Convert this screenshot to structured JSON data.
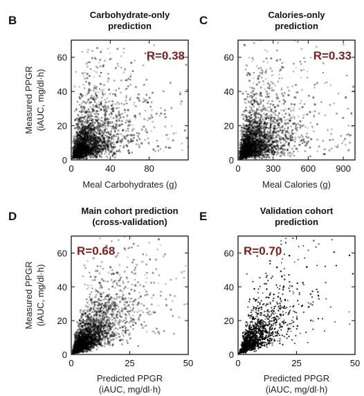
{
  "chart_data": [
    {
      "type": "scatter",
      "panel": "B",
      "title_lines": [
        "Carbohydrate-only",
        "prediction"
      ],
      "xlabel_lines": [
        "Meal Carbohydrates (g)"
      ],
      "ylabel_lines": [
        "Measured PPGR",
        "(iAUC, mg/dl·h)"
      ],
      "xlim": [
        0,
        120
      ],
      "ylim": [
        0,
        70
      ],
      "xticks": [
        0,
        40,
        80
      ],
      "yticks": [
        0,
        20,
        40,
        60
      ],
      "annotation": "R=0.38",
      "correlation": 0.38,
      "n_points_depicted": 2600,
      "color": "#000000"
    },
    {
      "type": "scatter",
      "panel": "C",
      "title_lines": [
        "Calories-only",
        "prediction"
      ],
      "xlabel_lines": [
        "Meal Calories (g)"
      ],
      "ylabel_lines": [],
      "xlim": [
        0,
        1000
      ],
      "ylim": [
        0,
        70
      ],
      "xticks": [
        0,
        300,
        600,
        900
      ],
      "yticks": [
        0,
        20,
        40,
        60
      ],
      "annotation": "R=0.33",
      "correlation": 0.33,
      "n_points_depicted": 2600,
      "color": "#000000"
    },
    {
      "type": "scatter",
      "panel": "D",
      "title_lines": [
        "Main cohort prediction",
        "(cross-validation)"
      ],
      "xlabel_lines": [
        "Predicted PPGR",
        "(iAUC, mg/dl·h)"
      ],
      "ylabel_lines": [
        "Measured PPGR",
        "(iAUC, mg/dl·h)"
      ],
      "xlim": [
        0,
        50
      ],
      "ylim": [
        0,
        70
      ],
      "xticks": [
        0,
        25,
        50
      ],
      "yticks": [
        0,
        20,
        40,
        60
      ],
      "annotation": "R=0.68",
      "correlation": 0.68,
      "n_points_depicted": 2600,
      "color": "#000000"
    },
    {
      "type": "scatter",
      "panel": "E",
      "title_lines": [
        "Validation cohort",
        "prediction"
      ],
      "xlabel_lines": [
        "Predicted PPGR",
        "(iAUC, mg/dl·h)"
      ],
      "ylabel_lines": [],
      "xlim": [
        0,
        50
      ],
      "ylim": [
        0,
        70
      ],
      "xticks": [
        0,
        25,
        50
      ],
      "yticks": [
        0,
        20,
        40,
        60
      ],
      "annotation": "R=0.70",
      "correlation": 0.7,
      "n_points_depicted": 1300,
      "color": "#000000"
    }
  ]
}
